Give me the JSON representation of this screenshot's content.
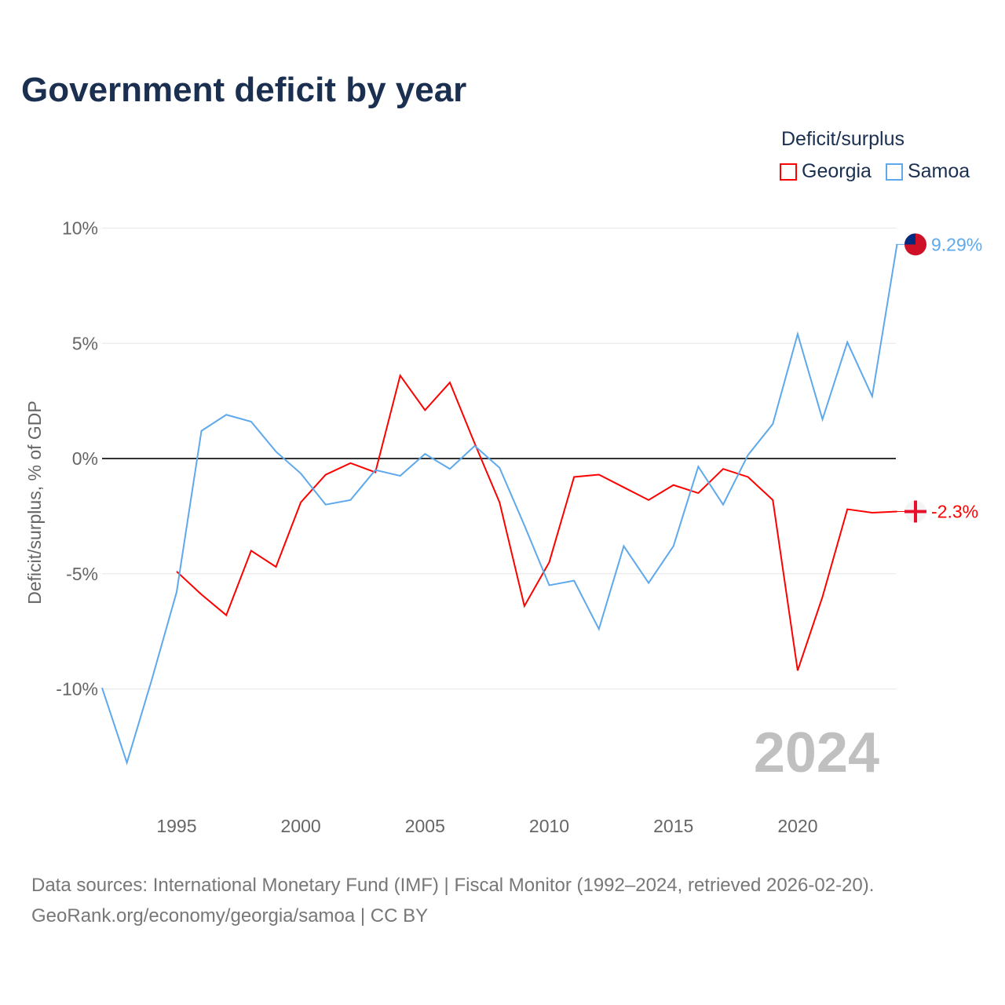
{
  "title": "Government deficit by year",
  "legend": {
    "title": "Deficit/surplus",
    "items": [
      {
        "name": "Georgia",
        "color": "#ff0000"
      },
      {
        "name": "Samoa",
        "color": "#5ea8ec"
      }
    ]
  },
  "footer": {
    "line1": "Data sources: International Monetary Fund (IMF) | Fiscal Monitor (1992–2024, retrieved 2026-02-20).",
    "line2": "GeoRank.org/economy/georgia/samoa | CC BY"
  },
  "chart_data": {
    "type": "line",
    "title": "Government deficit by year",
    "xlabel": "",
    "ylabel": "Deficit/surplus, % of GDP",
    "xlim": [
      1992,
      2024
    ],
    "ylim": [
      -14,
      10.5
    ],
    "yticks": [
      10,
      5,
      0,
      -5,
      -10
    ],
    "ytick_labels": [
      "10%",
      "5%",
      "0%",
      "-5%",
      "-10%"
    ],
    "xticks": [
      1995,
      2000,
      2005,
      2010,
      2015,
      2020
    ],
    "xtick_labels": [
      "1995",
      "2000",
      "2005",
      "2010",
      "2015",
      "2020"
    ],
    "year_watermark": "2024",
    "grid": true,
    "legend_position": "top-right",
    "series": [
      {
        "name": "Georgia",
        "color": "#ff0000",
        "end_label": "-2.3%",
        "icon": "georgia-flag",
        "x": [
          1995,
          1996,
          1997,
          1998,
          1999,
          2000,
          2001,
          2002,
          2003,
          2004,
          2005,
          2006,
          2007,
          2008,
          2009,
          2010,
          2011,
          2012,
          2013,
          2014,
          2015,
          2016,
          2017,
          2018,
          2019,
          2020,
          2021,
          2022,
          2023,
          2024
        ],
        "values": [
          -4.9,
          -5.9,
          -6.8,
          -4.0,
          -4.7,
          -1.9,
          -0.7,
          -0.2,
          -0.6,
          3.6,
          2.1,
          3.3,
          0.65,
          -1.9,
          -6.4,
          -4.5,
          -0.8,
          -0.7,
          -1.25,
          -1.8,
          -1.15,
          -1.5,
          -0.45,
          -0.8,
          -1.8,
          -9.2,
          -6.0,
          -2.2,
          -2.35,
          -2.3
        ]
      },
      {
        "name": "Samoa",
        "color": "#5ea8ec",
        "end_label": "9.29%",
        "icon": "samoa-flag",
        "x": [
          1992,
          1993,
          1994,
          1995,
          1996,
          1997,
          1998,
          1999,
          2000,
          2001,
          2002,
          2003,
          2004,
          2005,
          2006,
          2007,
          2008,
          2009,
          2010,
          2011,
          2012,
          2013,
          2014,
          2015,
          2016,
          2017,
          2018,
          2019,
          2020,
          2021,
          2022,
          2023,
          2024
        ],
        "values": [
          -9.95,
          -13.2,
          -9.6,
          -5.8,
          1.2,
          1.9,
          1.6,
          0.3,
          -0.65,
          -2.0,
          -1.8,
          -0.5,
          -0.75,
          0.2,
          -0.45,
          0.55,
          -0.4,
          -2.9,
          -5.5,
          -5.3,
          -7.4,
          -3.8,
          -5.4,
          -3.8,
          -0.35,
          -2.0,
          0.15,
          1.5,
          5.4,
          1.7,
          5.05,
          2.7,
          9.29
        ]
      }
    ]
  }
}
